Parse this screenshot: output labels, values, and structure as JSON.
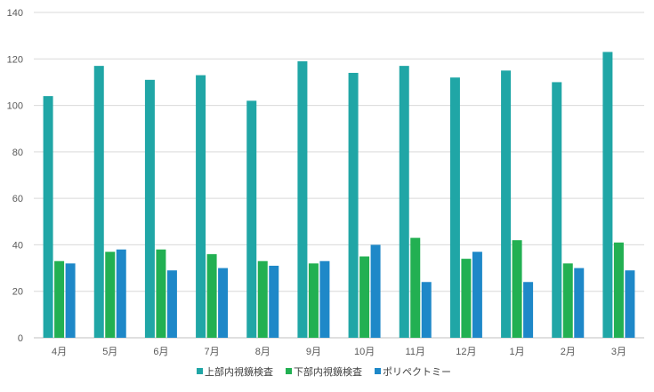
{
  "chart_data": {
    "type": "bar",
    "categories": [
      "4月",
      "5月",
      "6月",
      "7月",
      "8月",
      "9月",
      "10月",
      "11月",
      "12月",
      "1月",
      "2月",
      "3月"
    ],
    "series": [
      {
        "name": "上部内視鏡検査",
        "color": "#20A6A6",
        "values": [
          104,
          117,
          111,
          113,
          102,
          119,
          114,
          117,
          112,
          115,
          110,
          123
        ]
      },
      {
        "name": "下部内視鏡検査",
        "color": "#22B052",
        "values": [
          33,
          37,
          38,
          36,
          33,
          32,
          35,
          43,
          34,
          42,
          32,
          41
        ]
      },
      {
        "name": "ポリペクトミー",
        "color": "#1E88C8",
        "values": [
          32,
          38,
          29,
          30,
          31,
          33,
          40,
          24,
          37,
          24,
          30,
          29
        ]
      }
    ],
    "yticks": [
      "0",
      "20",
      "40",
      "60",
      "80",
      "100",
      "120",
      "140"
    ],
    "ylim": [
      0,
      140
    ],
    "grid": true,
    "legend_position": "bottom"
  }
}
